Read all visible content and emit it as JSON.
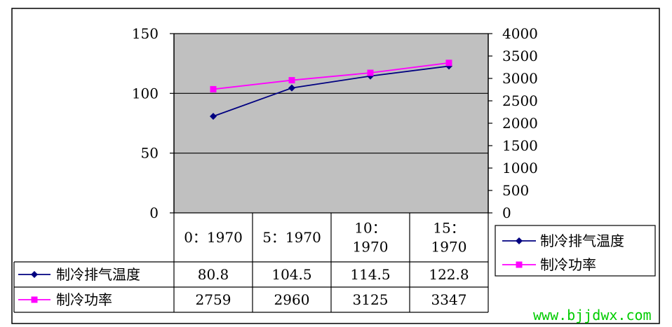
{
  "chart_data": {
    "type": "line",
    "categories": [
      "0：1970",
      "5：1970",
      "10：1970",
      "15：1970"
    ],
    "category_lines": [
      [
        "0：1970"
      ],
      [
        "5：1970"
      ],
      [
        "10：",
        "1970"
      ],
      [
        "15：",
        "1970"
      ]
    ],
    "series": [
      {
        "name": "制冷排气温度",
        "axis": "left",
        "values": [
          80.8,
          104.5,
          114.5,
          122.8
        ],
        "labels": [
          "80.8",
          "104.5",
          "114.5",
          "122.8"
        ],
        "color": "#000080",
        "marker": "diamond"
      },
      {
        "name": "制冷功率",
        "axis": "right",
        "values": [
          2759,
          2960,
          3125,
          3347
        ],
        "labels": [
          "2759",
          "2960",
          "3125",
          "3347"
        ],
        "color": "#ff00ff",
        "marker": "square"
      }
    ],
    "y_left": {
      "min": 0,
      "max": 150,
      "ticks": [
        "0",
        "50",
        "100",
        "150"
      ]
    },
    "y_right": {
      "min": 0,
      "max": 4000,
      "ticks": [
        "0",
        "500",
        "1000",
        "1500",
        "2000",
        "2500",
        "3000",
        "3500",
        "4000"
      ]
    },
    "plot_background": "#c0c0c0",
    "gridlines": true,
    "legend_position": "right",
    "data_table": true
  },
  "watermark": "www.bjjdwx.com"
}
